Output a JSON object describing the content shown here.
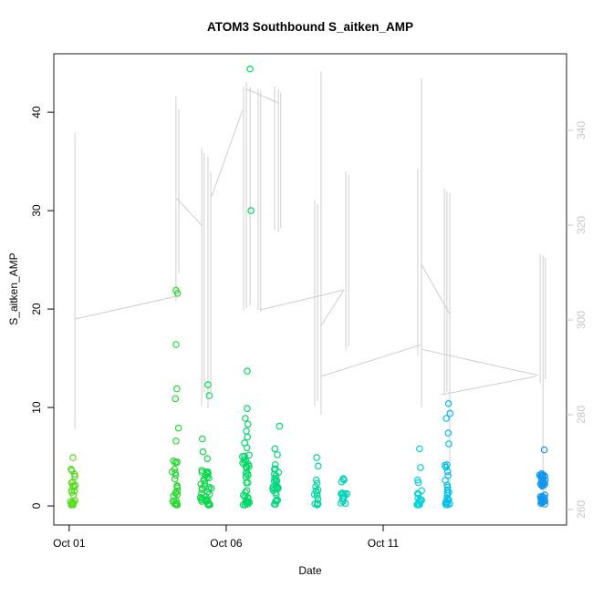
{
  "chart_data": {
    "type": "scatter",
    "title": "ATOM3 Southbound S_aitken_AMP",
    "xlabel": "Date",
    "ylabel": "S_aitken_AMP",
    "legend": "none",
    "grid": false,
    "colors": {
      "box": "#333333",
      "axis_text": "#000000",
      "right_axis": "#c6c6c6",
      "line": "#c9c9c9"
    },
    "x_range_days": [
      -0.49,
      15.84
    ],
    "x_ticks": [
      {
        "label": "Oct 01",
        "day": 0
      },
      {
        "label": "Oct 06",
        "day": 5
      },
      {
        "label": "Oct 11",
        "day": 10
      }
    ],
    "y_left": {
      "ticks": [
        0,
        10,
        20,
        30,
        40
      ],
      "range": [
        -1.94,
        45.94
      ]
    },
    "y_right": {
      "ticks": [
        260,
        280,
        300,
        320,
        340
      ],
      "range": [
        256.73,
        356.15
      ]
    },
    "point_style": {
      "radius": 3.2,
      "stroke_width": 1.2,
      "fill": "none"
    },
    "line_series": {
      "name": "secondary-series-right-axis",
      "segments_day_value": [
        [
          0.18,
          339.5,
          0.18,
          277.0
        ],
        [
          3.4,
          347.3,
          3.4,
          304.0
        ],
        [
          3.49,
          344.4,
          3.49,
          309.8
        ],
        [
          4.22,
          336.3,
          4.22,
          281.9
        ],
        [
          4.3,
          335.2,
          4.3,
          284.8
        ],
        [
          4.42,
          334.4,
          4.42,
          281.3
        ],
        [
          4.51,
          331.3,
          4.51,
          284.8
        ],
        [
          5.55,
          349.2,
          5.55,
          302.1
        ],
        [
          5.64,
          350.2,
          5.64,
          302.5
        ],
        [
          5.76,
          349.2,
          5.76,
          303.1
        ],
        [
          6.02,
          348.7,
          6.02,
          302.1
        ],
        [
          6.1,
          348.3,
          6.1,
          301.7
        ],
        [
          6.54,
          349.2,
          6.54,
          319.0
        ],
        [
          6.66,
          348.7,
          6.66,
          318.5
        ],
        [
          6.74,
          347.9,
          6.74,
          319.4
        ],
        [
          7.82,
          325.2,
          7.82,
          281.9
        ],
        [
          7.91,
          324.4,
          7.91,
          282.9
        ],
        [
          8.02,
          352.5,
          8.02,
          280.0
        ],
        [
          8.81,
          331.3,
          8.81,
          293.5
        ],
        [
          8.9,
          330.6,
          8.9,
          294.4
        ],
        [
          11.1,
          331.7,
          11.1,
          292.5
        ],
        [
          11.22,
          351.0,
          11.22,
          281.5
        ],
        [
          11.95,
          327.7,
          11.95,
          284.2
        ],
        [
          12.03,
          327.1,
          12.03,
          284.8
        ],
        [
          12.12,
          326.7,
          12.12,
          261.2
        ],
        [
          15.0,
          313.8,
          15.0,
          286.7
        ],
        [
          15.09,
          313.5,
          15.09,
          261.2
        ],
        [
          15.17,
          313.1,
          15.17,
          287.5
        ],
        [
          0.2,
          300.2,
          3.43,
          305.0
        ],
        [
          3.43,
          325.6,
          4.24,
          319.8
        ],
        [
          4.53,
          326.0,
          5.52,
          344.2
        ],
        [
          5.64,
          348.7,
          6.66,
          345.8
        ],
        [
          6.08,
          302.1,
          8.75,
          306.3
        ],
        [
          8.75,
          306.3,
          8.02,
          298.8
        ],
        [
          8.02,
          288.1,
          11.22,
          294.8
        ],
        [
          11.22,
          311.7,
          12.12,
          301.2
        ],
        [
          11.22,
          293.8,
          14.94,
          288.3
        ],
        [
          11.83,
          284.2,
          14.86,
          288.1
        ]
      ]
    },
    "clusters": [
      {
        "day": 0.12,
        "color": "#55dd1e",
        "n": 22,
        "lo": 0.1,
        "hi": 4.2,
        "outliers": [
          [
            0,
            4.9
          ]
        ]
      },
      {
        "day": 3.4,
        "color": "#2ada32",
        "n": 26,
        "lo": 0.1,
        "hi": 5.0,
        "outliers": [
          [
            0,
            21.9
          ],
          [
            0.05,
            21.6
          ],
          [
            0,
            16.4
          ],
          [
            0.03,
            11.9
          ],
          [
            -0.02,
            10.9
          ],
          [
            0.08,
            7.9
          ],
          [
            0,
            6.6
          ]
        ]
      },
      {
        "day": 4.24,
        "color": "#16d946",
        "n": 14,
        "lo": 0.1,
        "hi": 4.0,
        "outliers": [
          [
            0,
            6.8
          ],
          [
            0.02,
            5.5
          ]
        ]
      },
      {
        "day": 4.42,
        "color": "#0dd851",
        "n": 26,
        "lo": 0.1,
        "hi": 3.6,
        "outliers": [
          [
            0,
            12.3
          ],
          [
            0.04,
            11.2
          ],
          [
            -0.02,
            4.8
          ]
        ]
      },
      {
        "day": 5.64,
        "color": "#00d966",
        "n": 36,
        "lo": 0.1,
        "hi": 5.4,
        "outliers": [
          [
            0.12,
            44.4
          ],
          [
            0.15,
            30.0
          ],
          [
            0.03,
            13.7
          ],
          [
            0.03,
            9.9
          ],
          [
            -0.03,
            8.9
          ],
          [
            0.05,
            8.3
          ],
          [
            0,
            7.6
          ],
          [
            0.04,
            7.0
          ],
          [
            -0.05,
            6.4
          ],
          [
            0.02,
            5.9
          ]
        ]
      },
      {
        "day": 6.6,
        "color": "#00d87e",
        "n": 28,
        "lo": 0.1,
        "hi": 4.6,
        "outliers": [
          [
            0.1,
            8.1
          ],
          [
            -0.05,
            5.8
          ],
          [
            0.03,
            5.2
          ]
        ]
      },
      {
        "day": 7.88,
        "color": "#00d79c",
        "n": 14,
        "lo": 0.1,
        "hi": 4.4,
        "outliers": [
          [
            0,
            4.9
          ]
        ]
      },
      {
        "day": 8.72,
        "color": "#00d4b4",
        "n": 16,
        "lo": 0.1,
        "hi": 3.2,
        "outliers": []
      },
      {
        "day": 11.16,
        "color": "#00d2dc",
        "n": 14,
        "lo": 0.1,
        "hi": 3.0,
        "outliers": [
          [
            0,
            5.8
          ],
          [
            0.03,
            3.9
          ]
        ]
      },
      {
        "day": 12.03,
        "color": "#00bfea",
        "n": 22,
        "lo": 0.1,
        "hi": 4.2,
        "outliers": [
          [
            0.05,
            10.4
          ],
          [
            0.1,
            9.4
          ],
          [
            -0.02,
            8.9
          ],
          [
            0.04,
            7.4
          ],
          [
            0.06,
            6.3
          ]
        ]
      },
      {
        "day": 15.08,
        "color": "#1295f0",
        "n": 40,
        "lo": 0.1,
        "hi": 4.0,
        "outliers": [
          [
            0.05,
            5.7
          ]
        ]
      }
    ]
  }
}
